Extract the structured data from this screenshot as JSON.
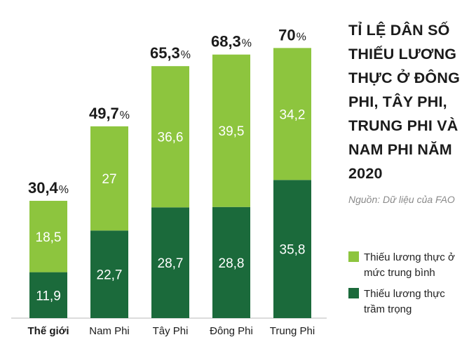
{
  "header": {
    "title": "TỈ LỆ DÂN SỐ THIẾU LƯƠNG THỰC Ở ĐÔNG PHI, TÂY PHI, TRUNG PHI VÀ NAM PHI NĂM 2020",
    "source": "Nguồn: Dữ liệu của FAO"
  },
  "legend": {
    "moderate_label": "Thiếu lương thực ở mức trung bình",
    "severe_label": "Thiếu lương thực trầm trọng"
  },
  "colors": {
    "moderate": "#8dc53e",
    "severe": "#1b6a3b",
    "text_on_bar": "#ffffff",
    "label": "#1b1b1b"
  },
  "chart_data": {
    "type": "bar",
    "stacked": true,
    "categories": [
      "Thế giới",
      "Nam Phi",
      "Tây Phi",
      "Đông Phi",
      "Trung Phi"
    ],
    "series": [
      {
        "name": "Thiếu lương thực trầm trọng",
        "values": [
          11.9,
          22.7,
          28.7,
          28.8,
          35.8
        ],
        "labels": [
          "11,9",
          "22,7",
          "28,7",
          "28,8",
          "35,8"
        ]
      },
      {
        "name": "Thiếu lương thực ở mức trung bình",
        "values": [
          18.5,
          27,
          36.6,
          39.5,
          34.2
        ],
        "labels": [
          "18,5",
          "27",
          "36,6",
          "39,5",
          "34,2"
        ]
      }
    ],
    "totals": [
      30.4,
      49.7,
      65.3,
      68.3,
      70
    ],
    "total_labels": [
      "30,4",
      "49,7",
      "65,3",
      "68,3",
      "70"
    ],
    "total_unit": "%",
    "bold_category": "Thế giới",
    "title": "TỈ LỆ DÂN SỐ THIẾU LƯƠNG THỰC Ở ĐÔNG PHI, TÂY PHI, TRUNG PHI VÀ NAM PHI NĂM 2020",
    "xlabel": "",
    "ylabel": "",
    "ylim": [
      0,
      70
    ],
    "grid": false,
    "legend_position": "right"
  }
}
